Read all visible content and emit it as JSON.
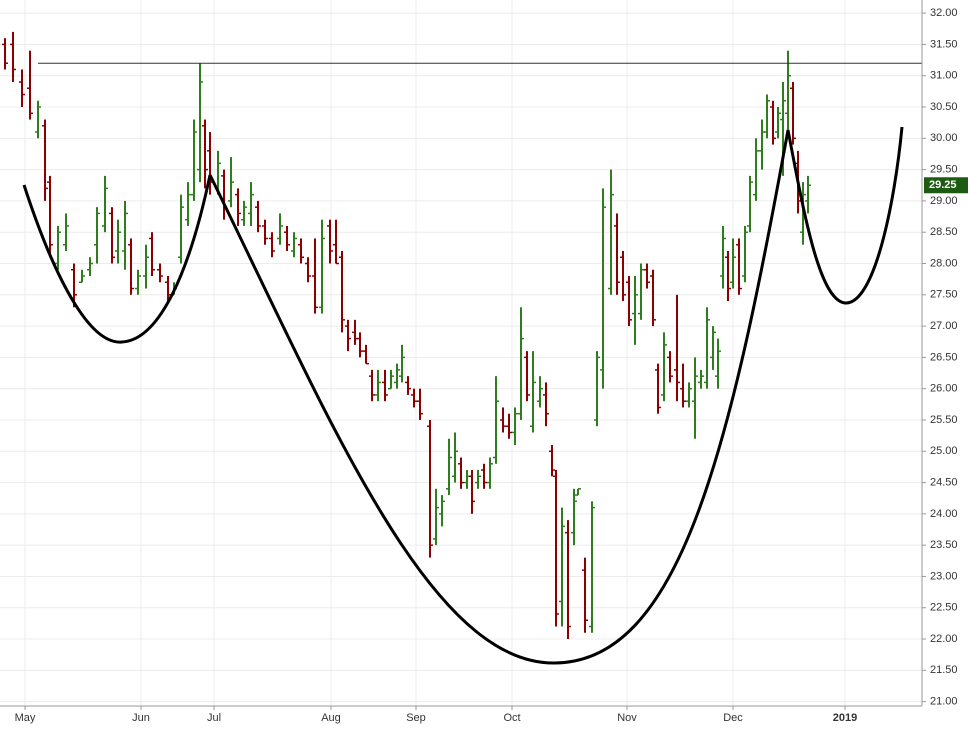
{
  "chart_data": {
    "type": "ohlc",
    "xlim": [
      0,
      230.5
    ],
    "ylim": [
      20.93,
      32.21
    ],
    "xticks": [
      {
        "value": 6.25,
        "label": "May"
      },
      {
        "value": 35.25,
        "label": "Jun"
      },
      {
        "value": 53.5,
        "label": "Jul"
      },
      {
        "value": 82.75,
        "label": "Aug"
      },
      {
        "value": 104,
        "label": "Sep"
      },
      {
        "value": 128,
        "label": "Oct"
      },
      {
        "value": 156.75,
        "label": "Nov"
      },
      {
        "value": 183.25,
        "label": "Dec"
      },
      {
        "value": 211.25,
        "label": "2019"
      }
    ],
    "yticks": [
      {
        "value": 21,
        "label": "21.00"
      },
      {
        "value": 21.5,
        "label": "21.50"
      },
      {
        "value": 22,
        "label": "22.00"
      },
      {
        "value": 22.5,
        "label": "22.50"
      },
      {
        "value": 23,
        "label": "23.00"
      },
      {
        "value": 23.5,
        "label": "23.50"
      },
      {
        "value": 24,
        "label": "24.00"
      },
      {
        "value": 24.5,
        "label": "24.50"
      },
      {
        "value": 25,
        "label": "25.00"
      },
      {
        "value": 25.5,
        "label": "25.50"
      },
      {
        "value": 26,
        "label": "26.00"
      },
      {
        "value": 26.5,
        "label": "26.50"
      },
      {
        "value": 27,
        "label": "27.00"
      },
      {
        "value": 27.5,
        "label": "27.50"
      },
      {
        "value": 28,
        "label": "28.00"
      },
      {
        "value": 28.5,
        "label": "28.50"
      },
      {
        "value": 29,
        "label": "29.00"
      },
      {
        "value": 29.5,
        "label": "29.50"
      },
      {
        "value": 30,
        "label": "30.00"
      },
      {
        "value": 30.5,
        "label": "30.50"
      },
      {
        "value": 31,
        "label": "31.00"
      },
      {
        "value": 31.5,
        "label": "31.50"
      },
      {
        "value": 32,
        "label": "32.00"
      }
    ],
    "grid": true,
    "up_color": "#2e7d1e",
    "down_color": "#8b0000",
    "resistance": 31.2,
    "last_price": 29.25,
    "x": [
      1.25,
      3.25,
      5.5,
      7.5,
      9.5,
      11.25,
      12.5,
      14.5,
      16.5,
      18.5,
      20.5,
      22.5,
      24.25,
      26.25,
      28,
      29.5,
      31.25,
      32.75,
      34.5,
      36.5,
      38,
      40,
      42,
      43.5,
      45.25,
      47,
      48.5,
      50,
      51.25,
      52.5,
      54.5,
      56,
      57.75,
      59.5,
      61,
      62.75,
      64.5,
      66.25,
      68,
      70,
      71.75,
      73.5,
      75.25,
      77,
      78.75,
      80.5,
      82.5,
      84,
      85.5,
      87,
      88.75,
      90,
      91.5,
      93,
      94.5,
      96.25,
      97.75,
      99.25,
      100.5,
      102,
      103.5,
      105,
      107.5,
      109,
      110.5,
      112.25,
      113.75,
      115.25,
      116.75,
      118,
      119.5,
      121,
      122.5,
      124,
      125.75,
      127.25,
      128.75,
      130.25,
      131.75,
      133.25,
      135,
      136.5,
      138,
      139,
      140.5,
      142,
      143.5,
      144.5,
      146.25,
      148,
      149.25,
      150.75,
      152.75,
      154.25,
      155.75,
      157.25,
      158.75,
      160.25,
      161.75,
      163.25,
      164.5,
      166,
      167.5,
      169.25,
      170.75,
      172.25,
      173.75,
      175.25,
      176.75,
      178.25,
      179.5,
      180.75,
      182,
      183.25,
      184.75,
      186.25,
      187.5,
      189,
      190.5,
      191.75,
      193.25,
      194.5,
      195.75,
      197,
      198.25,
      199.5,
      200.75,
      202
    ],
    "open": [
      31.5,
      31.5,
      30.9,
      30.8,
      30.1,
      30.2,
      29.3,
      28,
      28.3,
      27.9,
      27.7,
      27.9,
      28.3,
      28.6,
      28.8,
      28.2,
      28.2,
      28.3,
      27.6,
      27.8,
      28.4,
      27.9,
      27.7,
      27.5,
      28.1,
      28.7,
      29.1,
      29.5,
      30.2,
      29.8,
      29.2,
      29.4,
      29,
      29.1,
      28.7,
      28.8,
      28.9,
      28.6,
      28.4,
      28.4,
      28.5,
      28.2,
      28.3,
      28,
      27.8,
      27.3,
      28.6,
      28.3,
      28.1,
      27,
      26.9,
      26.8,
      26.6,
      26.2,
      25.9,
      26.1,
      26,
      26.1,
      26.2,
      26.1,
      25.9,
      25.8,
      25.4,
      23.6,
      24,
      24.4,
      24.6,
      24.8,
      24.5,
      24.6,
      24.5,
      24.7,
      24.5,
      24.9,
      25.5,
      25.4,
      25.3,
      25.6,
      26.5,
      25.4,
      25.8,
      25.9,
      25,
      24.6,
      22.6,
      23.7,
      23.7,
      24.3,
      23.1,
      22.2,
      25.5,
      26.3,
      27.6,
      28.6,
      28.1,
      27.7,
      27.2,
      27.2,
      27.9,
      27.8,
      26.3,
      25.9,
      26.5,
      26.3,
      26,
      25.8,
      25.8,
      26.1,
      26.1,
      26.5,
      26.2,
      27.8,
      28.1,
      27.7,
      28.3,
      27.8,
      28.6,
      29.1,
      29.8,
      30.1,
      30.5,
      30.1,
      30.3,
      30.4,
      30.8,
      29.6,
      28.5,
      29
    ],
    "high": [
      31.6,
      31.7,
      31.1,
      31.4,
      30.6,
      30.3,
      29.4,
      28.6,
      28.8,
      28,
      27.9,
      28.1,
      28.9,
      29.4,
      28.9,
      28.7,
      29,
      28.4,
      27.9,
      28.3,
      28.5,
      28,
      27.8,
      27.7,
      29.1,
      29.3,
      30.3,
      31.2,
      30.3,
      30.1,
      29.8,
      29.5,
      29.7,
      29.2,
      29,
      29.3,
      29,
      28.7,
      28.5,
      28.8,
      28.6,
      28.5,
      28.4,
      28.1,
      28.4,
      28.7,
      28.7,
      28.7,
      28.2,
      27.1,
      27.1,
      26.9,
      26.7,
      26.3,
      26.3,
      26.3,
      26.3,
      26.4,
      26.7,
      26.2,
      26,
      26,
      25.5,
      24.4,
      24.3,
      25.2,
      25.3,
      24.9,
      24.7,
      24.7,
      24.7,
      24.8,
      24.9,
      26.2,
      25.7,
      25.6,
      25.7,
      27.3,
      26.6,
      26.6,
      26.2,
      26.1,
      25.1,
      24.7,
      24.1,
      23.9,
      24.4,
      24.4,
      23.3,
      24.2,
      26.6,
      29.2,
      29.5,
      28.8,
      28.2,
      27.8,
      27.8,
      28,
      28,
      27.9,
      26.4,
      26.9,
      26.6,
      27.5,
      26.4,
      26.1,
      26.5,
      26.3,
      27.3,
      27,
      26.8,
      28.6,
      28.2,
      28.4,
      28.4,
      28.6,
      29.4,
      30,
      30.3,
      30.7,
      30.6,
      30.5,
      30.9,
      31.4,
      30.9,
      29.8,
      29.3,
      29.4
    ],
    "low": [
      31.1,
      30.9,
      30.5,
      30.3,
      30,
      29,
      28.1,
      27.9,
      28.2,
      27.3,
      27.7,
      27.8,
      28,
      28.5,
      28,
      28,
      27.9,
      27.5,
      27.5,
      27.6,
      27.8,
      27.7,
      27.4,
      27.5,
      28,
      28.6,
      29,
      29.3,
      29.2,
      29.1,
      29.1,
      28.7,
      28.9,
      28.6,
      28.6,
      28.6,
      28.5,
      28.3,
      28.1,
      28.3,
      28.2,
      28.1,
      28,
      27.7,
      27.2,
      27.2,
      28,
      28,
      26.9,
      26.6,
      26.7,
      26.5,
      26.4,
      25.8,
      25.8,
      25.8,
      26,
      26,
      26.1,
      25.9,
      25.7,
      25.5,
      23.3,
      23.5,
      23.8,
      24.3,
      24.5,
      24.4,
      24.4,
      24,
      24.4,
      24.4,
      24.4,
      24.8,
      25.3,
      25.2,
      25.1,
      25.5,
      25.8,
      25.3,
      25.7,
      25.4,
      24.6,
      22.2,
      22.2,
      22,
      23.5,
      24.3,
      22.1,
      22.1,
      25.4,
      26,
      27.5,
      27.5,
      27.4,
      27,
      26.7,
      27.1,
      27.6,
      27,
      25.6,
      25.8,
      26.1,
      25.8,
      25.7,
      25.7,
      25.2,
      26,
      26,
      26.3,
      26,
      27.6,
      27.4,
      27.6,
      27.5,
      27.7,
      28.5,
      29,
      29.5,
      30,
      29.9,
      30,
      29.4,
      30.1,
      29.9,
      28.8,
      28.3,
      28.8
    ],
    "close": [
      31.2,
      31.1,
      30.7,
      30.4,
      30.5,
      29.2,
      28.3,
      28.5,
      28.6,
      27.5,
      27.8,
      28,
      28.8,
      29.2,
      28.1,
      28.5,
      28.8,
      27.6,
      27.8,
      28.1,
      27.9,
      27.8,
      27.5,
      27.6,
      28.9,
      29.1,
      30.1,
      30.9,
      29.5,
      29.3,
      29.6,
      28.9,
      29.3,
      28.8,
      28.9,
      29.1,
      28.6,
      28.4,
      28.2,
      28.6,
      28.3,
      28.4,
      28.1,
      27.8,
      27.3,
      28.4,
      28.2,
      28,
      27.1,
      26.8,
      26.8,
      26.6,
      26.4,
      25.9,
      26.1,
      25.9,
      26.2,
      26.3,
      26.5,
      26,
      25.8,
      25.6,
      23.5,
      24.1,
      24.2,
      24.9,
      25,
      24.5,
      24.6,
      24.2,
      24.6,
      24.5,
      24.8,
      25.8,
      25.4,
      25.3,
      25.6,
      26.8,
      25.9,
      26.1,
      26,
      25.6,
      24.7,
      22.4,
      23.8,
      22.2,
      24.2,
      24.4,
      22.3,
      24.1,
      26.5,
      28.9,
      29.1,
      27.7,
      27.5,
      27.1,
      27.5,
      27.9,
      27.7,
      27.1,
      25.7,
      26.7,
      26.2,
      26.1,
      25.8,
      26,
      26.2,
      26.2,
      27.1,
      26.9,
      26.6,
      28.4,
      27.6,
      28.1,
      27.6,
      28.5,
      29.3,
      29.8,
      30.1,
      30.6,
      30,
      30.4,
      30.6,
      31,
      30,
      29,
      29.1,
      29.25
    ]
  }
}
